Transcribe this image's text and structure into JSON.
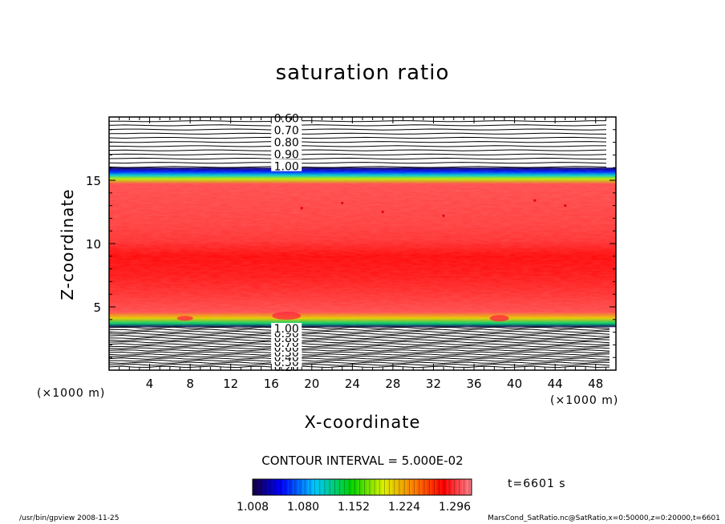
{
  "chart_data": {
    "type": "heatmap",
    "title": "saturation ratio",
    "xlabel": "X-coordinate",
    "ylabel": "Z-coordinate",
    "x_unit": "(×1000 m)",
    "xlim": [
      0,
      50
    ],
    "ylim": [
      0,
      20
    ],
    "x_ticks": [
      4,
      8,
      12,
      16,
      20,
      24,
      28,
      32,
      36,
      40,
      44,
      48
    ],
    "y_ticks": [
      5,
      10,
      15
    ],
    "upper_contour_labels": [
      "0.60",
      "0.70",
      "0.80",
      "0.90",
      "1.00"
    ],
    "lower_contour_labels": [
      "0.20",
      "0.30",
      "0.40",
      "0.50",
      "0.60",
      "0.70",
      "0.80",
      "0.90",
      "1.00"
    ],
    "contour_interval_text": "CONTOUR INTERVAL = 5.000E-02",
    "colorbar": {
      "ticks": [
        "1.008",
        "1.080",
        "1.152",
        "1.224",
        "1.296"
      ],
      "min": 1.008,
      "max": 1.32
    },
    "time_text": "t=6601 s",
    "profile": [
      {
        "z": 3.4,
        "value": 1.01
      },
      {
        "z": 3.7,
        "value": 1.12
      },
      {
        "z": 4.1,
        "value": 1.2
      },
      {
        "z": 4.6,
        "value": 1.26
      },
      {
        "z": 6.0,
        "value": 1.28
      },
      {
        "z": 7.5,
        "value": 1.3
      },
      {
        "z": 9.0,
        "value": 1.31
      },
      {
        "z": 10.2,
        "value": 1.28
      },
      {
        "z": 11.5,
        "value": 1.27
      },
      {
        "z": 13.0,
        "value": 1.265
      },
      {
        "z": 14.7,
        "value": 1.26
      },
      {
        "z": 15.1,
        "value": 1.18
      },
      {
        "z": 15.4,
        "value": 1.1
      },
      {
        "z": 15.7,
        "value": 1.05
      },
      {
        "z": 16.0,
        "value": 1.01
      }
    ]
  },
  "footer": {
    "left": "/usr/bin/gpview   2008-11-25",
    "right": "MarsCond_SatRatio.nc@SatRatio,x=0:50000,z=0:20000,t=6601"
  }
}
